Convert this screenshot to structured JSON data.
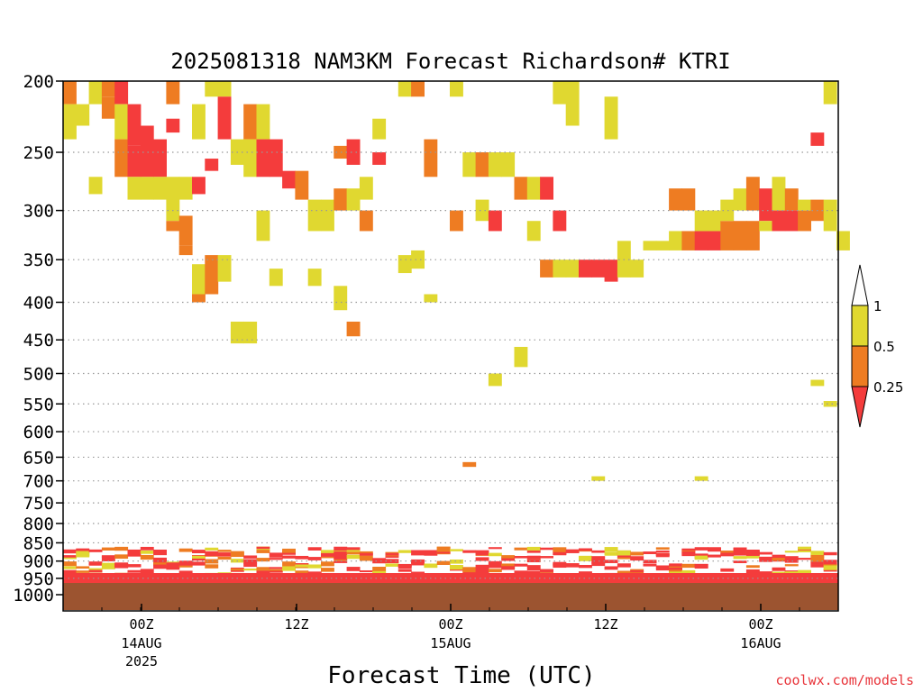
{
  "chart_data": {
    "type": "heatmap",
    "title": "2025081318 NAM3KM Forecast Richardson# KTRI",
    "xlabel": "Forecast Time (UTC)",
    "ylabel": "",
    "y_ticks": [
      "200",
      "250",
      "300",
      "350",
      "400",
      "450",
      "500",
      "550",
      "600",
      "650",
      "700",
      "750",
      "800",
      "850",
      "900",
      "950",
      "1000"
    ],
    "y_scale": "log-pressure",
    "ylim": [
      1000,
      200
    ],
    "x_ticks": [
      {
        "label": "00Z",
        "date": "14AUG",
        "year": "2025"
      },
      {
        "label": "12Z",
        "date": "",
        "year": ""
      },
      {
        "label": "00Z",
        "date": "15AUG",
        "year": ""
      },
      {
        "label": "12Z",
        "date": "",
        "year": ""
      },
      {
        "label": "00Z",
        "date": "16AUG",
        "year": ""
      }
    ],
    "grid": true,
    "colorbar": {
      "labels": [
        "1",
        "0.5",
        "0.25"
      ],
      "bins": [
        {
          "range": "0.5-1",
          "color": "#e0d830"
        },
        {
          "range": "0.25-0.5",
          "color": "#ee7c22"
        },
        {
          "range": "<0.25",
          "color": "#f43c3c"
        }
      ]
    },
    "terrain_color": "#9c5430",
    "cells": [
      [
        0,
        200,
        215,
        "orange"
      ],
      [
        0,
        215,
        240,
        "yellow"
      ],
      [
        1,
        215,
        230,
        "yellow"
      ],
      [
        2,
        200,
        215,
        "yellow"
      ],
      [
        2,
        270,
        285,
        "yellow"
      ],
      [
        3,
        200,
        210,
        "orange"
      ],
      [
        3,
        210,
        225,
        "orange"
      ],
      [
        4,
        200,
        215,
        "red"
      ],
      [
        4,
        215,
        240,
        "yellow"
      ],
      [
        4,
        240,
        270,
        "orange"
      ],
      [
        5,
        215,
        245,
        "red"
      ],
      [
        5,
        245,
        270,
        "red"
      ],
      [
        5,
        270,
        290,
        "yellow"
      ],
      [
        6,
        230,
        270,
        "red"
      ],
      [
        6,
        270,
        290,
        "yellow"
      ],
      [
        7,
        240,
        270,
        "red"
      ],
      [
        7,
        270,
        290,
        "yellow"
      ],
      [
        8,
        200,
        215,
        "orange"
      ],
      [
        8,
        225,
        235,
        "red"
      ],
      [
        8,
        270,
        310,
        "yellow"
      ],
      [
        8,
        310,
        320,
        "orange"
      ],
      [
        9,
        270,
        290,
        "yellow"
      ],
      [
        9,
        305,
        335,
        "orange"
      ],
      [
        9,
        335,
        345,
        "orange"
      ],
      [
        10,
        215,
        240,
        "yellow"
      ],
      [
        10,
        270,
        285,
        "red"
      ],
      [
        10,
        355,
        390,
        "yellow"
      ],
      [
        10,
        390,
        400,
        "orange"
      ],
      [
        11,
        200,
        210,
        "yellow"
      ],
      [
        11,
        255,
        265,
        "red"
      ],
      [
        11,
        345,
        390,
        "orange"
      ],
      [
        12,
        200,
        210,
        "yellow"
      ],
      [
        12,
        210,
        240,
        "red"
      ],
      [
        12,
        345,
        375,
        "yellow"
      ],
      [
        13,
        240,
        260,
        "yellow"
      ],
      [
        13,
        425,
        455,
        "yellow"
      ],
      [
        14,
        215,
        240,
        "orange"
      ],
      [
        14,
        240,
        270,
        "yellow"
      ],
      [
        14,
        425,
        455,
        "yellow"
      ],
      [
        15,
        215,
        240,
        "yellow"
      ],
      [
        15,
        240,
        270,
        "red"
      ],
      [
        15,
        300,
        330,
        "yellow"
      ],
      [
        16,
        240,
        270,
        "red"
      ],
      [
        16,
        360,
        380,
        "yellow"
      ],
      [
        17,
        265,
        280,
        "red"
      ],
      [
        18,
        265,
        290,
        "orange"
      ],
      [
        19,
        290,
        320,
        "yellow"
      ],
      [
        19,
        360,
        380,
        "yellow"
      ],
      [
        20,
        290,
        320,
        "yellow"
      ],
      [
        21,
        245,
        255,
        "orange"
      ],
      [
        21,
        280,
        300,
        "orange"
      ],
      [
        21,
        380,
        410,
        "yellow"
      ],
      [
        22,
        240,
        260,
        "red"
      ],
      [
        22,
        280,
        300,
        "yellow"
      ],
      [
        22,
        425,
        445,
        "orange"
      ],
      [
        23,
        270,
        290,
        "yellow"
      ],
      [
        23,
        300,
        320,
        "orange"
      ],
      [
        24,
        225,
        240,
        "yellow"
      ],
      [
        24,
        250,
        260,
        "red"
      ],
      [
        26,
        200,
        210,
        "yellow"
      ],
      [
        26,
        345,
        365,
        "yellow"
      ],
      [
        27,
        200,
        210,
        "orange"
      ],
      [
        27,
        340,
        360,
        "yellow"
      ],
      [
        28,
        390,
        400,
        "yellow"
      ],
      [
        28,
        240,
        270,
        "orange"
      ],
      [
        30,
        300,
        320,
        "orange"
      ],
      [
        30,
        200,
        210,
        "yellow"
      ],
      [
        31,
        250,
        270,
        "yellow"
      ],
      [
        31,
        660,
        670,
        "orange"
      ],
      [
        32,
        250,
        270,
        "orange"
      ],
      [
        32,
        290,
        310,
        "yellow"
      ],
      [
        33,
        300,
        320,
        "red"
      ],
      [
        33,
        250,
        270,
        "yellow"
      ],
      [
        33,
        500,
        520,
        "yellow"
      ],
      [
        34,
        250,
        270,
        "yellow"
      ],
      [
        35,
        270,
        290,
        "orange"
      ],
      [
        35,
        460,
        490,
        "yellow"
      ],
      [
        36,
        270,
        290,
        "yellow"
      ],
      [
        36,
        310,
        330,
        "yellow"
      ],
      [
        37,
        270,
        290,
        "red"
      ],
      [
        37,
        350,
        370,
        "orange"
      ],
      [
        38,
        350,
        370,
        "yellow"
      ],
      [
        38,
        300,
        320,
        "red"
      ],
      [
        38,
        200,
        215,
        "yellow"
      ],
      [
        39,
        200,
        230,
        "yellow"
      ],
      [
        39,
        350,
        370,
        "yellow"
      ],
      [
        40,
        350,
        370,
        "red"
      ],
      [
        41,
        350,
        370,
        "red"
      ],
      [
        41,
        690,
        700,
        "yellow"
      ],
      [
        42,
        350,
        375,
        "red"
      ],
      [
        42,
        210,
        240,
        "yellow"
      ],
      [
        43,
        330,
        370,
        "yellow"
      ],
      [
        44,
        350,
        370,
        "yellow"
      ],
      [
        45,
        330,
        340,
        "yellow"
      ],
      [
        46,
        330,
        340,
        "yellow"
      ],
      [
        47,
        320,
        340,
        "yellow"
      ],
      [
        47,
        280,
        300,
        "orange"
      ],
      [
        48,
        320,
        340,
        "orange"
      ],
      [
        48,
        280,
        300,
        "orange"
      ],
      [
        49,
        320,
        340,
        "red"
      ],
      [
        49,
        300,
        320,
        "yellow"
      ],
      [
        49,
        690,
        700,
        "yellow"
      ],
      [
        50,
        320,
        340,
        "red"
      ],
      [
        50,
        300,
        320,
        "yellow"
      ],
      [
        51,
        310,
        340,
        "orange"
      ],
      [
        51,
        290,
        310,
        "yellow"
      ],
      [
        52,
        310,
        340,
        "orange"
      ],
      [
        52,
        280,
        300,
        "yellow"
      ],
      [
        53,
        310,
        340,
        "orange"
      ],
      [
        53,
        270,
        300,
        "orange"
      ],
      [
        54,
        280,
        310,
        "red"
      ],
      [
        54,
        310,
        320,
        "yellow"
      ],
      [
        55,
        270,
        300,
        "yellow"
      ],
      [
        55,
        300,
        320,
        "red"
      ],
      [
        56,
        280,
        300,
        "orange"
      ],
      [
        56,
        300,
        320,
        "red"
      ],
      [
        57,
        300,
        320,
        "orange"
      ],
      [
        57,
        290,
        300,
        "yellow"
      ],
      [
        58,
        290,
        310,
        "orange"
      ],
      [
        58,
        235,
        245,
        "red"
      ],
      [
        58,
        510,
        520,
        "yellow"
      ],
      [
        59,
        200,
        215,
        "yellow"
      ],
      [
        59,
        290,
        320,
        "yellow"
      ],
      [
        59,
        545,
        555,
        "yellow"
      ],
      [
        60,
        320,
        340,
        "yellow"
      ]
    ]
  },
  "watermark": "coolwx.com/models"
}
